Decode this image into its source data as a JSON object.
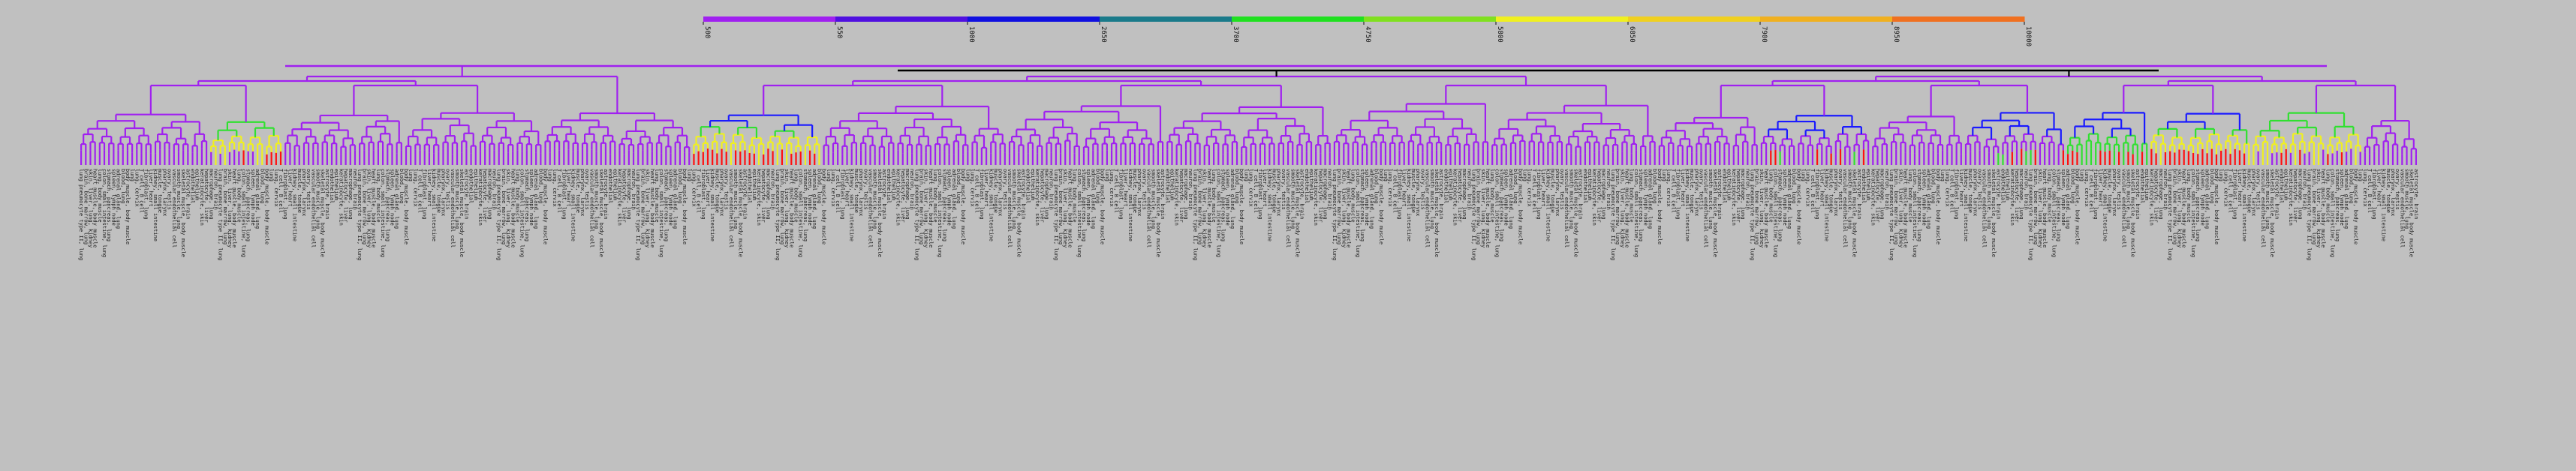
{
  "scale": {
    "ticks": [
      "500",
      "550",
      "1000",
      "2650",
      "3700",
      "4750",
      "5800",
      "6850",
      "7900",
      "8950",
      "10000"
    ],
    "colors": [
      "#a020f0",
      "#5010e0",
      "#1010e0",
      "#1a7a8a",
      "#20e020",
      "#80e020",
      "#f0f020",
      "#f0d020",
      "#f0b020",
      "#f07020"
    ]
  },
  "tree": {
    "branch_colors": {
      "default": "#a020f0",
      "deep": "#1a1aff",
      "green": "#30e030",
      "yellow": "#f0f020",
      "red": "#ff1010",
      "root": "#000000"
    },
    "groups": [
      {
        "color": "purple",
        "leaves": 28
      },
      {
        "color": "yellow",
        "leaves": 16
      },
      {
        "color": "purple",
        "leaves": 26
      },
      {
        "color": "purple",
        "leaves": 30
      },
      {
        "color": "purple",
        "leaves": 32
      },
      {
        "color": "red",
        "leaves": 28
      },
      {
        "color": "purple",
        "leaves": 40
      },
      {
        "color": "purple",
        "leaves": 34
      },
      {
        "color": "purple",
        "leaves": 36
      },
      {
        "color": "purple",
        "leaves": 34
      },
      {
        "color": "purple",
        "leaves": 36
      },
      {
        "color": "purple",
        "leaves": 22
      },
      {
        "color": "mixed",
        "leaves": 24
      },
      {
        "color": "purple",
        "leaves": 20
      },
      {
        "color": "mixed",
        "leaves": 22
      },
      {
        "color": "green",
        "leaves": 18
      },
      {
        "color": "red",
        "leaves": 22
      },
      {
        "color": "yellow",
        "leaves": 24
      },
      {
        "color": "purple",
        "leaves": 12
      }
    ],
    "label_samples": [
      "lung pneumocyte type II, lung",
      "brain, bone marrow, lung",
      "skin, liver, lung, kidney",
      "heart muscle, body muscle",
      "lung, body muscle",
      "colon, small intestine, lung",
      "stomach, pancreas, lung",
      "spleen, lymph node",
      "adrenal gland, lung",
      "blood, lung",
      "body muscle, body muscle",
      "lung",
      "lung, cervix",
      "T cell, B cell",
      "fibroblast, lung",
      "liver, heart",
      "kidney, small intestine",
      "muscle, tongue",
      "pharynx, larynx",
      "ovary, testis",
      "vascular endothelial cell",
      "smooth muscle, lung",
      "skeletal muscle, body muscle",
      "astrocyte, brain",
      "endothelial",
      "epithelium",
      "keratinocyte, skin",
      "hepatocyte, liver",
      "macrophage, lung",
      "neuron, brain"
    ]
  }
}
